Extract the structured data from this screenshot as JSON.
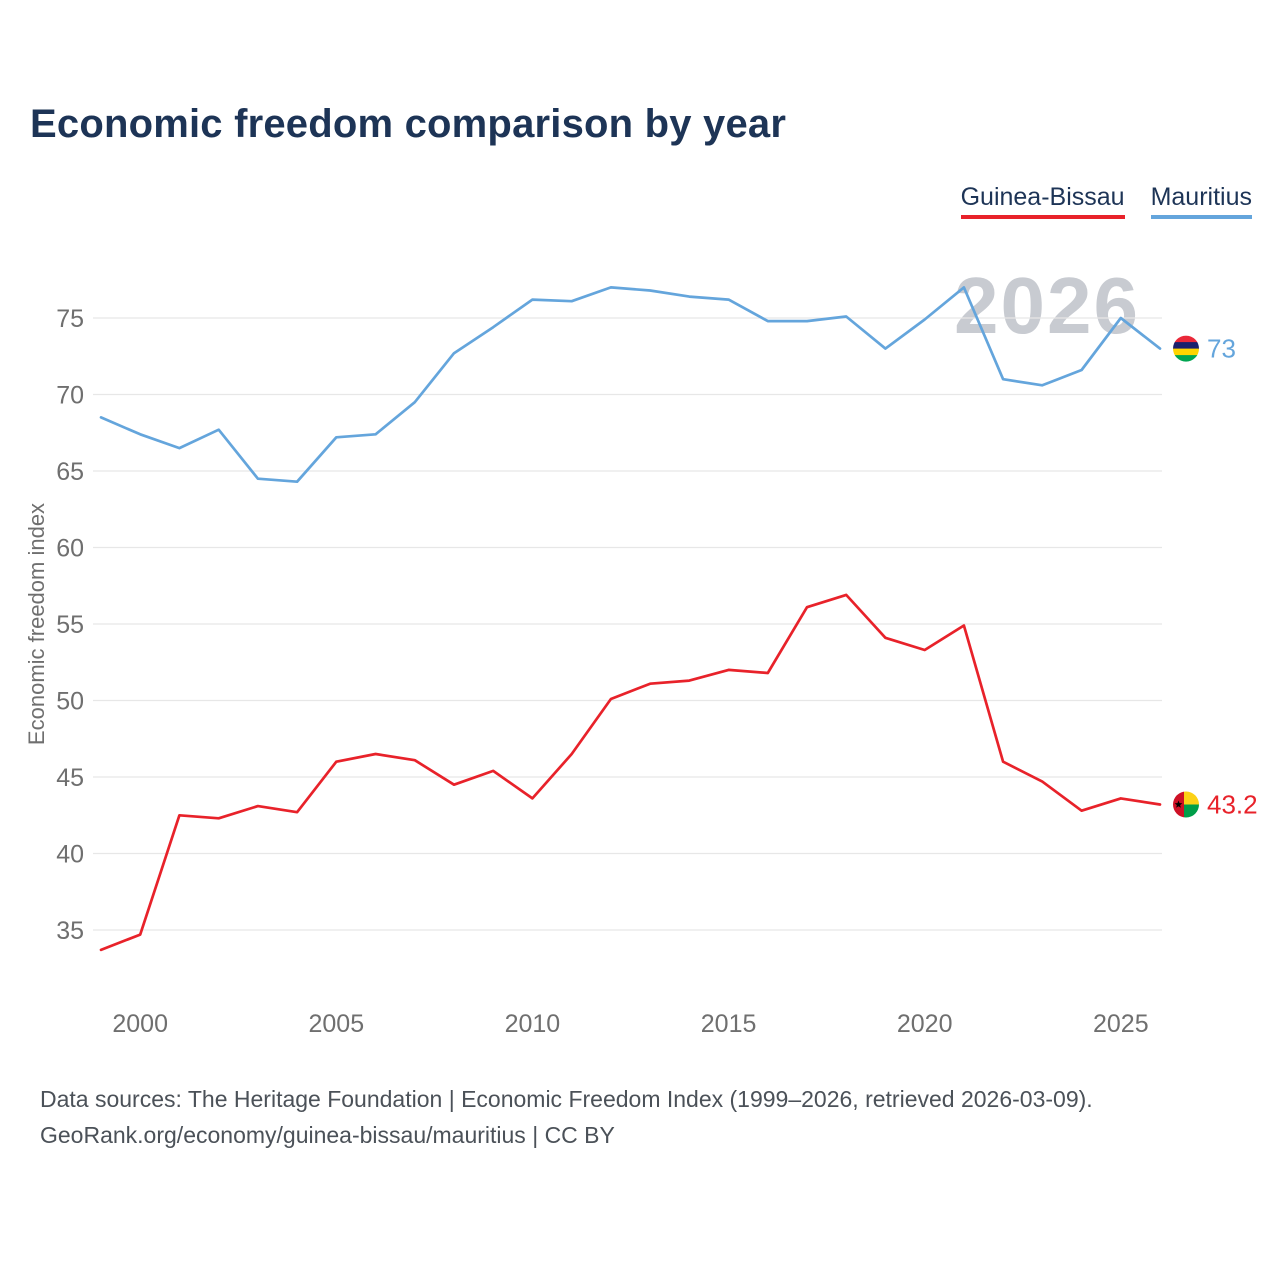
{
  "title": "Economic freedom comparison by year",
  "watermark": "2026",
  "legend": [
    {
      "label": "Guinea-Bissau",
      "color": "#e8222a"
    },
    {
      "label": "Mauritius",
      "color": "#64a5dc"
    }
  ],
  "colors": {
    "grid": "#e7e7e7",
    "axis": "#6f6f6f",
    "title": "#1d3456",
    "watermark": "#c8cbd1",
    "footer": "#4b5158"
  },
  "icons": {
    "mauritius-flag-icon": {
      "type": "circle-flag-horizontal-stripes",
      "stripes": [
        "#EA2839",
        "#1A206D",
        "#FFD500",
        "#00A551"
      ]
    },
    "guinea-bissau-flag-icon": {
      "type": "circle-flag-vertical-band",
      "band": "#CE1126",
      "top": "#FCD116",
      "bottom": "#009E49",
      "star": "#000000"
    }
  },
  "footer": {
    "line1": "Data sources: The Heritage Foundation | Economic Freedom Index (1999–2026, retrieved 2026-03-09).",
    "line2": "GeoRank.org/economy/guinea-bissau/mauritius | CC BY"
  },
  "chart_data": {
    "type": "line",
    "title": "Economic freedom comparison by year",
    "xlabel": "",
    "ylabel": "Economic freedom index",
    "x": [
      1999,
      2000,
      2001,
      2002,
      2003,
      2004,
      2005,
      2006,
      2007,
      2008,
      2009,
      2010,
      2011,
      2012,
      2013,
      2014,
      2015,
      2016,
      2017,
      2018,
      2019,
      2020,
      2021,
      2022,
      2023,
      2024,
      2025,
      2026
    ],
    "x_ticks": [
      2000,
      2005,
      2010,
      2015,
      2020,
      2025
    ],
    "y_ticks": [
      35,
      40,
      45,
      50,
      55,
      60,
      65,
      70,
      75
    ],
    "ylim": [
      32,
      79
    ],
    "grid": "horizontal",
    "legend_position": "top-right",
    "series": [
      {
        "id": "guinea-bissau",
        "name": "Guinea-Bissau",
        "color": "#e8222a",
        "end_label": "43.2",
        "flag": "guinea-bissau-flag-icon",
        "values": [
          33.7,
          34.7,
          42.5,
          42.3,
          43.1,
          42.7,
          46.0,
          46.5,
          46.1,
          44.5,
          45.4,
          43.6,
          46.5,
          50.1,
          51.1,
          51.3,
          52.0,
          51.8,
          56.1,
          56.9,
          54.1,
          53.3,
          54.9,
          46.0,
          44.7,
          42.8,
          43.6,
          43.2
        ]
      },
      {
        "id": "mauritius",
        "name": "Mauritius",
        "color": "#64a5dc",
        "end_label": "73",
        "flag": "mauritius-flag-icon",
        "values": [
          68.5,
          67.4,
          66.5,
          67.7,
          64.5,
          64.3,
          67.2,
          67.4,
          69.5,
          72.7,
          74.4,
          76.2,
          76.1,
          77.0,
          76.8,
          76.4,
          76.2,
          74.8,
          74.8,
          75.1,
          73.0,
          74.9,
          77.0,
          71.0,
          70.6,
          71.6,
          75.0,
          73.0
        ]
      }
    ]
  }
}
